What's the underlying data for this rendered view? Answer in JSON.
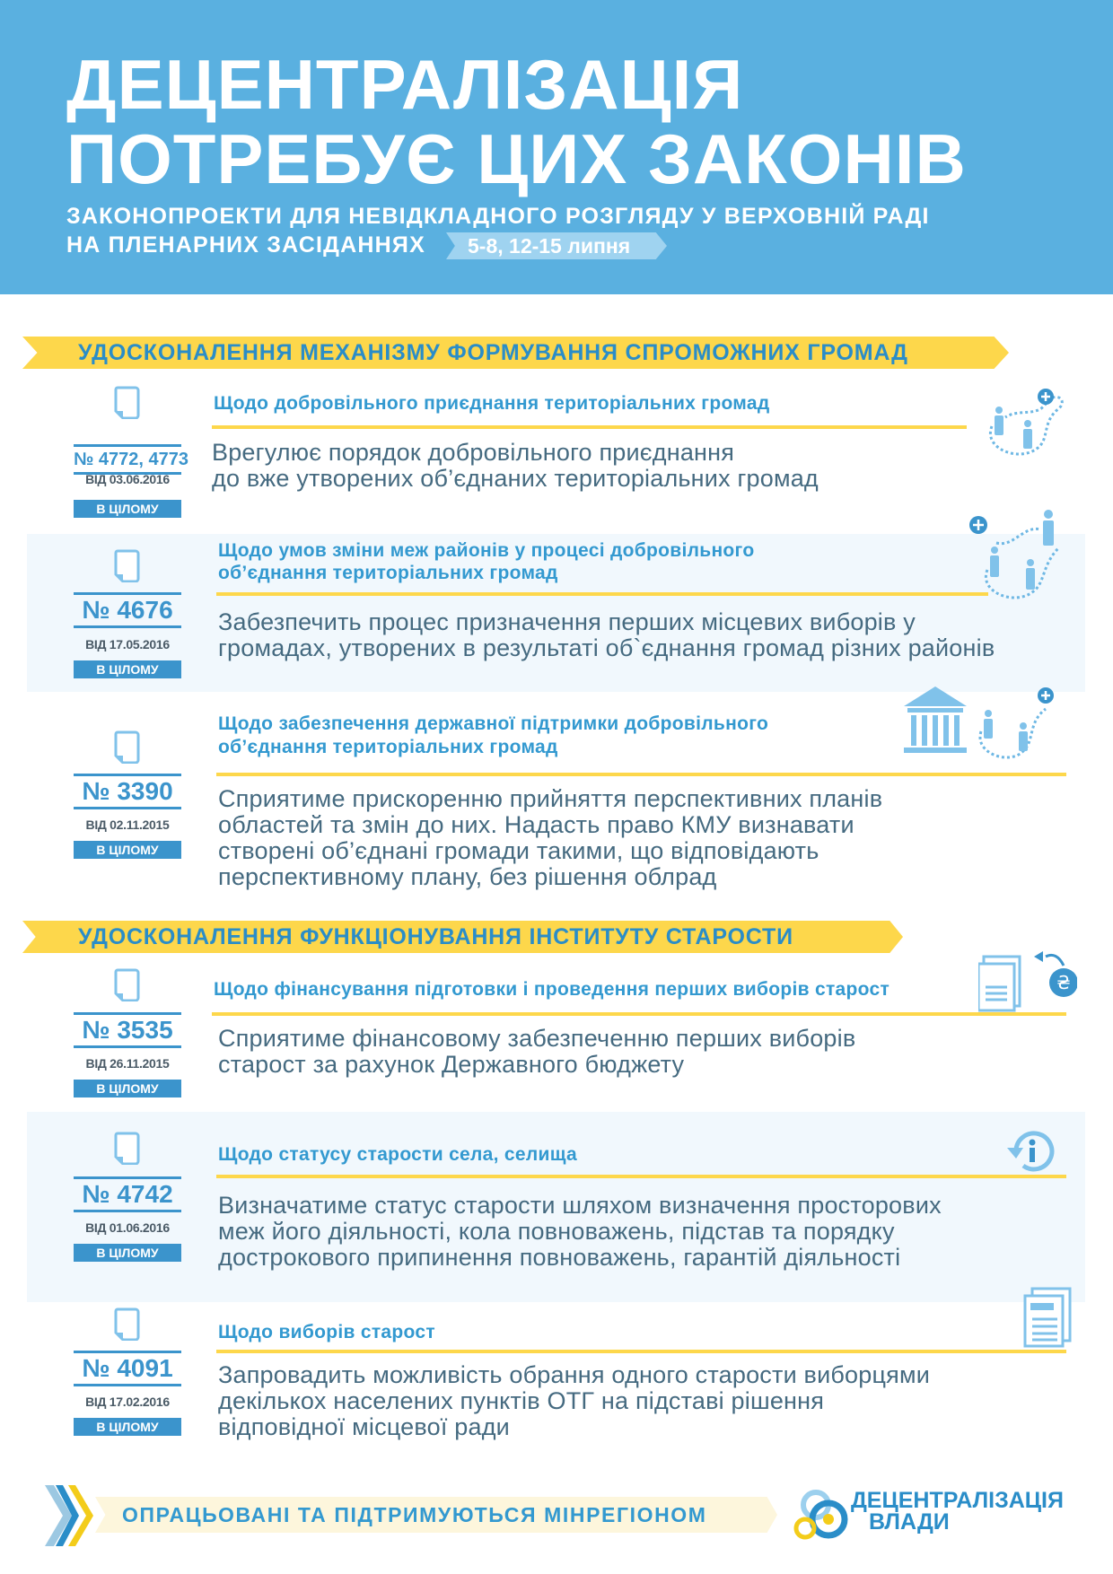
{
  "header": {
    "title_line1": "ДЕЦЕНТРАЛІЗАЦІЯ",
    "title_line2": "ПОТРЕБУЄ ЦИХ ЗАКОНІВ",
    "subtitle_line1": "ЗАКОНОПРОЕКТИ ДЛЯ НЕВІДКЛАДНОГО РОЗГЛЯДУ У ВЕРХОВНІЙ РАДІ",
    "subtitle_line2": "НА ПЛЕНАРНИХ ЗАСІДАННЯХ",
    "dates_badge": "5-8, 12-15 липня"
  },
  "sections": [
    {
      "heading": "УДОСКОНАЛЕННЯ МЕХАНІЗМУ ФОРМУВАННЯ СПРОМОЖНИХ ГРОМАД"
    },
    {
      "heading": "УДОСКОНАЛЕННЯ ФУНКЦІОНУВАННЯ ІНСТИТУТУ СТАРОСТИ"
    }
  ],
  "bills": [
    {
      "number": "№ 4772, 4773",
      "date": "ВІД 03.06.2016",
      "status": "В ЦІЛОМУ",
      "title": [
        "Щодо добровільного приєднання територіальних громад"
      ],
      "desc": [
        "Врегулює порядок добровільного приєднання",
        "до вже утворених об’єднаних територіальних громад"
      ],
      "icon": "people-join-icon"
    },
    {
      "number": "№ 4676",
      "date": "ВІД 17.05.2016",
      "status": "В ЦІЛОМУ",
      "title": [
        "Щодо умов зміни меж районів у процесі добровільного",
        "об’єднання територіальних громад"
      ],
      "desc": [
        "Забезпечить процес призначення перших місцевих виборів у",
        "громадах, утворених в результаті об`єднання громад різних районів"
      ],
      "icon": "people-boundary-icon"
    },
    {
      "number": "№ 3390",
      "date": "ВІД 02.11.2015",
      "status": "В ЦІЛОМУ",
      "title": [
        "Щодо забезпечення державної підтримки добровільного",
        "об’єднання територіальних громад"
      ],
      "desc": [
        "Сприятиме прискоренню прийняття перспективних планів",
        "областей та змін до них. Надасть право КМУ визнавати",
        "створені об’єднані громади такими, що відповідають",
        "перспективному плану, без рішення облрад"
      ],
      "icon": "government-building-icon"
    },
    {
      "number": "№ 3535",
      "date": "ВІД 26.11.2015",
      "status": "В ЦІЛОМУ",
      "title": [
        "Щодо фінансування підготовки і проведення перших виборів старост"
      ],
      "desc": [
        "Сприятиме фінансовому забезпеченню перших виборів",
        "старост за рахунок  Державного бюджету"
      ],
      "icon": "documents-money-icon"
    },
    {
      "number": "№ 4742",
      "date": "ВІД 01.06.2016",
      "status": "В ЦІЛОМУ",
      "title": [
        "Щодо статусу старости села, селища"
      ],
      "desc": [
        "Визначатиме статус старости шляхом визначення просторових",
        "меж його діяльності, кола повноважень, підстав та порядку",
        "дострокового припинення повноважень, гарантій діяльності"
      ],
      "icon": "info-refresh-icon"
    },
    {
      "number": "№ 4091",
      "date": "ВІД 17.02.2016",
      "status": "В ЦІЛОМУ",
      "title": [
        "Щодо виборів старост"
      ],
      "desc": [
        "Запровадить можливість обрання одного старости виборцями",
        "декількох населених пунктів ОТГ на підставі рішення",
        "відповідної місцевої ради"
      ],
      "icon": "ballot-document-icon"
    }
  ],
  "footer": {
    "banner": "ОПРАЦЬОВАНІ ТА ПІДТРИМУЮТЬСЯ МІНРЕГІОНОМ",
    "logo_line1": "ДЕЦЕНТРАЛІЗАЦІЯ",
    "logo_line2": "ВЛАДИ"
  },
  "colors": {
    "header_bg": "#5ab0e0",
    "accent_yellow": "#fdd74b",
    "accent_blue": "#3b94cc",
    "text": "#456a80"
  }
}
